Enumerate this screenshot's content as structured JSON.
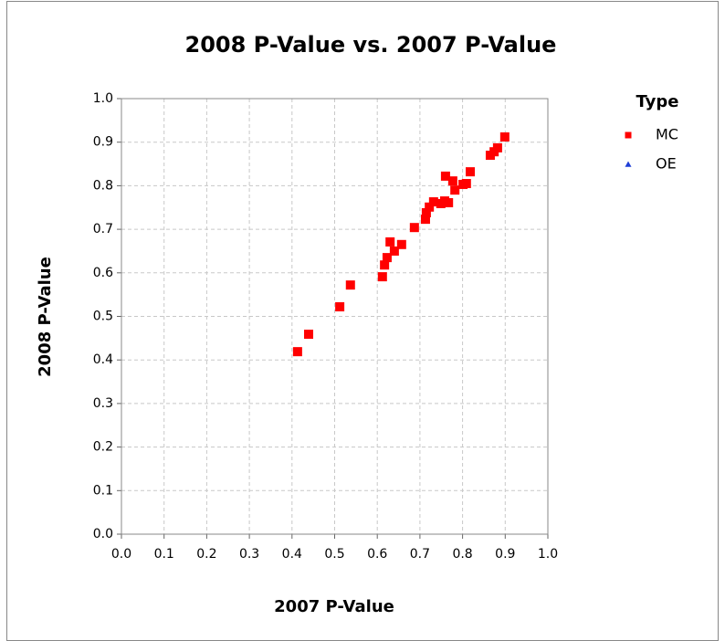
{
  "chart_data": {
    "type": "scatter",
    "title": "2008 P-Value vs. 2007 P-Value",
    "x_label": "2007 P-Value",
    "y_label": "2008 P-Value",
    "legend_title": "Type",
    "legend_position": "right",
    "grid": true,
    "xlim": [
      0,
      1
    ],
    "ylim": [
      0,
      1
    ],
    "xticks": [
      {
        "value": 0,
        "label": "0.0"
      },
      0.1,
      0.2,
      0.3,
      0.4,
      0.5,
      0.6,
      0.7,
      0.8,
      0.9,
      {
        "value": 1,
        "label": "1.0"
      }
    ],
    "yticks": [
      {
        "value": 0,
        "label": "0.0"
      },
      0.1,
      0.2,
      0.3,
      0.4,
      0.5,
      0.6,
      0.7,
      0.8,
      0.9,
      {
        "value": 1,
        "label": "1.0"
      }
    ],
    "series": [
      {
        "name": "MC",
        "color": "#ff0000",
        "marker": "square",
        "x": [
          0.413,
          0.439,
          0.512,
          0.537,
          0.612,
          0.617,
          0.623,
          0.63,
          0.64,
          0.657,
          0.687,
          0.713,
          0.715,
          0.722,
          0.732,
          0.749,
          0.758,
          0.76,
          0.767,
          0.777,
          0.782,
          0.801,
          0.809,
          0.818,
          0.865,
          0.874,
          0.882,
          0.899
        ],
        "y": [
          0.419,
          0.459,
          0.522,
          0.572,
          0.591,
          0.618,
          0.635,
          0.671,
          0.65,
          0.665,
          0.704,
          0.723,
          0.738,
          0.751,
          0.763,
          0.759,
          0.765,
          0.822,
          0.761,
          0.811,
          0.79,
          0.803,
          0.805,
          0.832,
          0.87,
          0.878,
          0.887,
          0.912
        ]
      },
      {
        "name": "OE",
        "color": "#1f3fd6",
        "marker": "triangle",
        "x": [],
        "y": []
      }
    ]
  }
}
